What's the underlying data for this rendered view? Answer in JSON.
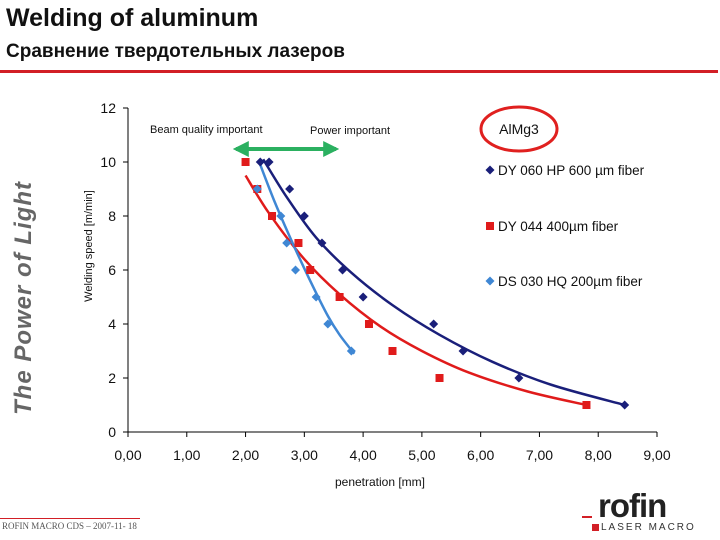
{
  "slide": {
    "title": "Welding of aluminum",
    "subtitle": "Сравнение твердотельных лазеров",
    "side_tag": "The Power of Light",
    "footer": "ROFIN MACRO CDS – 2007-11- 18",
    "logo": {
      "word": "rofin",
      "sub": "LASER MACRO"
    },
    "colors": {
      "rule": "#d21f26",
      "circle": "#e0201f",
      "arrow": "#2bb060"
    }
  },
  "chart_data": {
    "type": "scatter",
    "title": "",
    "xlabel": "penetration [mm]",
    "ylabel": "Welding speed [m/min]",
    "xlim": [
      0,
      9
    ],
    "ylim": [
      0,
      12
    ],
    "x_ticks": [
      "0,00",
      "1,00",
      "2,00",
      "3,00",
      "4,00",
      "5,00",
      "6,00",
      "7,00",
      "8,00",
      "9,00"
    ],
    "y_ticks": [
      "0",
      "2",
      "4",
      "6",
      "8",
      "10",
      "12"
    ],
    "grid": false,
    "annotations": {
      "beam_quality": "Beam quality important",
      "power": "Power important",
      "material": "AlMg3"
    },
    "series": [
      {
        "name": "DY 060 HP 600 µm fiber",
        "marker": "diamond",
        "color": "#1a1f7a",
        "points": [
          [
            2.25,
            10.0
          ],
          [
            2.4,
            10.0
          ],
          [
            2.75,
            9.0
          ],
          [
            3.0,
            8.0
          ],
          [
            3.3,
            7.0
          ],
          [
            3.65,
            6.0
          ],
          [
            4.0,
            5.0
          ],
          [
            5.2,
            4.0
          ],
          [
            5.7,
            3.0
          ],
          [
            6.65,
            2.0
          ],
          [
            8.45,
            1.0
          ]
        ],
        "trend": [
          [
            2.3,
            10.1
          ],
          [
            2.7,
            8.7
          ],
          [
            3.2,
            7.2
          ],
          [
            3.8,
            5.9
          ],
          [
            4.5,
            4.7
          ],
          [
            5.3,
            3.6
          ],
          [
            6.2,
            2.6
          ],
          [
            7.2,
            1.75
          ],
          [
            8.45,
            1.0
          ]
        ]
      },
      {
        "name": "DY 044 400µm fiber",
        "marker": "square",
        "color": "#e01b1b",
        "points": [
          [
            2.0,
            10.0
          ],
          [
            2.2,
            9.0
          ],
          [
            2.45,
            8.0
          ],
          [
            2.9,
            7.0
          ],
          [
            3.1,
            6.0
          ],
          [
            3.6,
            5.0
          ],
          [
            4.1,
            4.0
          ],
          [
            4.5,
            3.0
          ],
          [
            5.3,
            2.0
          ],
          [
            7.8,
            1.0
          ]
        ],
        "trend": [
          [
            2.0,
            9.5
          ],
          [
            2.4,
            8.1
          ],
          [
            3.0,
            6.4
          ],
          [
            3.6,
            5.1
          ],
          [
            4.3,
            3.9
          ],
          [
            5.0,
            3.0
          ],
          [
            5.8,
            2.2
          ],
          [
            6.8,
            1.5
          ],
          [
            7.8,
            1.0
          ]
        ]
      },
      {
        "name": "DS 030 HQ 200µm fiber",
        "marker": "diamond",
        "color": "#3f87d4",
        "points": [
          [
            2.2,
            9.0
          ],
          [
            2.6,
            8.0
          ],
          [
            2.7,
            7.0
          ],
          [
            2.85,
            6.0
          ],
          [
            3.2,
            5.0
          ],
          [
            3.4,
            4.0
          ],
          [
            3.8,
            3.0
          ]
        ],
        "trend": [
          [
            2.25,
            9.9
          ],
          [
            2.5,
            8.5
          ],
          [
            2.8,
            7.0
          ],
          [
            3.1,
            5.6
          ],
          [
            3.4,
            4.3
          ],
          [
            3.6,
            3.6
          ],
          [
            3.85,
            2.9
          ]
        ]
      }
    ]
  }
}
